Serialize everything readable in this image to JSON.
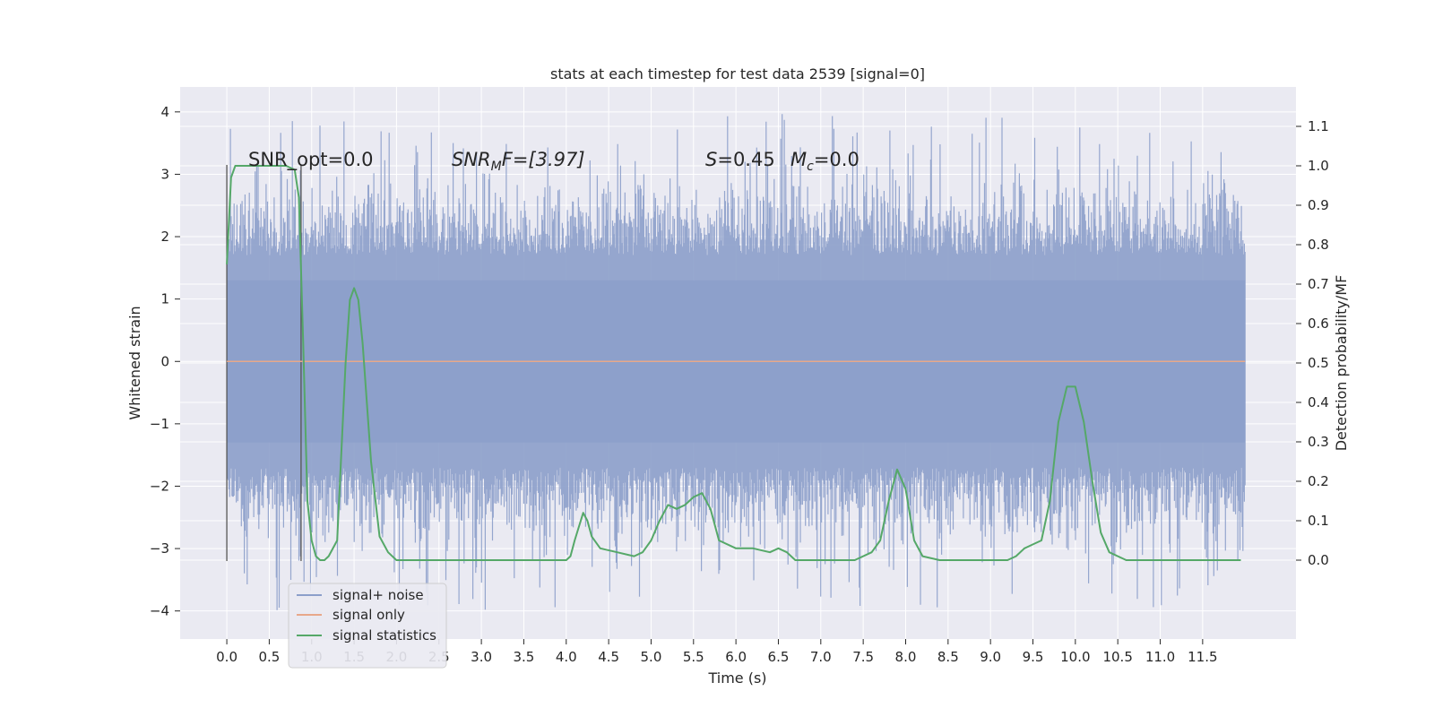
{
  "chart_data": {
    "type": "line",
    "title": "stats at each timestep for test data 2539 [signal=0]",
    "xlabel": "Time (s)",
    "ylabel": "Whitened strain",
    "y2label": "Detection probability/MF",
    "xlim": [
      -0.55,
      12.6
    ],
    "ylim": [
      -4.45,
      4.4
    ],
    "y2lim": [
      -0.2,
      1.2
    ],
    "x_ticks": [
      "0.0",
      "0.5",
      "1.0",
      "1.5",
      "2.0",
      "2.5",
      "3.0",
      "3.5",
      "4.0",
      "4.5",
      "5.0",
      "5.5",
      "6.0",
      "6.5",
      "7.0",
      "7.5",
      "8.0",
      "8.5",
      "9.0",
      "9.5",
      "10.0",
      "10.5",
      "11.0",
      "11.5"
    ],
    "y_ticks": [
      "−4",
      "−3",
      "−2",
      "−1",
      "0",
      "1",
      "2",
      "3",
      "4"
    ],
    "y2_ticks": [
      "0.0",
      "0.1",
      "0.2",
      "0.3",
      "0.4",
      "0.5",
      "0.6",
      "0.7",
      "0.8",
      "0.9",
      "1.0",
      "1.1"
    ],
    "grid": true,
    "legend_position": "bottom-left",
    "legend": [
      "signal+ noise",
      "signal only",
      "signal statistics"
    ],
    "annotations": {
      "snr_opt": "SNR_opt=0.0",
      "snr_mf_sym": "SNR",
      "snr_mf_sub": "M",
      "snr_mf_rest": "F=[3.97]",
      "s_sym": "S",
      "s_rest": "=0.45",
      "mc_sym": "M",
      "mc_sub": "c",
      "mc_rest": "=0.0"
    },
    "vertical_markers": [
      0.0,
      0.875
    ],
    "series": [
      {
        "name": "signal+ noise",
        "color": "#8c9fca",
        "note_values": "dense noise trace about 0, range about -4.0 to 4.0, typical |y| about 1.5-2.5",
        "x_range": [
          0.0,
          12.0
        ],
        "envelope_max": 4.0,
        "envelope_min": -4.0
      },
      {
        "name": "signal only",
        "color": "#e8a88a",
        "x": [
          0.0,
          12.0
        ],
        "y": [
          0.0,
          0.0
        ]
      },
      {
        "name": "signal statistics",
        "axis": "right",
        "color": "#55a868",
        "x": [
          0.0,
          0.05,
          0.1,
          0.2,
          0.3,
          0.5,
          0.7,
          0.8,
          0.85,
          0.9,
          0.95,
          1.0,
          1.05,
          1.1,
          1.15,
          1.2,
          1.3,
          1.4,
          1.45,
          1.5,
          1.55,
          1.6,
          1.7,
          1.8,
          1.9,
          2.0,
          2.2,
          2.5,
          3.0,
          3.5,
          4.0,
          4.05,
          4.1,
          4.2,
          4.25,
          4.3,
          4.4,
          4.6,
          4.8,
          4.9,
          5.0,
          5.1,
          5.2,
          5.3,
          5.4,
          5.5,
          5.6,
          5.7,
          5.8,
          6.0,
          6.2,
          6.4,
          6.5,
          6.6,
          6.7,
          6.8,
          7.0,
          7.2,
          7.4,
          7.6,
          7.7,
          7.8,
          7.9,
          8.0,
          8.1,
          8.2,
          8.4,
          8.8,
          9.0,
          9.2,
          9.3,
          9.4,
          9.5,
          9.6,
          9.7,
          9.8,
          9.9,
          10.0,
          10.1,
          10.2,
          10.3,
          10.4,
          10.6,
          11.0,
          11.5,
          11.95
        ],
        "y": [
          0.75,
          0.97,
          1.0,
          1.0,
          1.0,
          1.0,
          1.0,
          0.99,
          0.92,
          0.55,
          0.15,
          0.05,
          0.01,
          0.0,
          0.0,
          0.01,
          0.05,
          0.5,
          0.66,
          0.69,
          0.66,
          0.55,
          0.25,
          0.06,
          0.02,
          0.0,
          0.0,
          0.0,
          0.0,
          0.0,
          0.0,
          0.01,
          0.05,
          0.12,
          0.1,
          0.06,
          0.03,
          0.02,
          0.01,
          0.02,
          0.05,
          0.1,
          0.14,
          0.13,
          0.14,
          0.16,
          0.17,
          0.13,
          0.05,
          0.03,
          0.03,
          0.02,
          0.03,
          0.02,
          0.0,
          0.0,
          0.0,
          0.0,
          0.0,
          0.02,
          0.05,
          0.15,
          0.23,
          0.18,
          0.05,
          0.01,
          0.0,
          0.0,
          0.0,
          0.0,
          0.01,
          0.03,
          0.04,
          0.05,
          0.15,
          0.35,
          0.44,
          0.44,
          0.35,
          0.2,
          0.07,
          0.02,
          0.0,
          0.0,
          0.0,
          0.0
        ]
      }
    ]
  }
}
